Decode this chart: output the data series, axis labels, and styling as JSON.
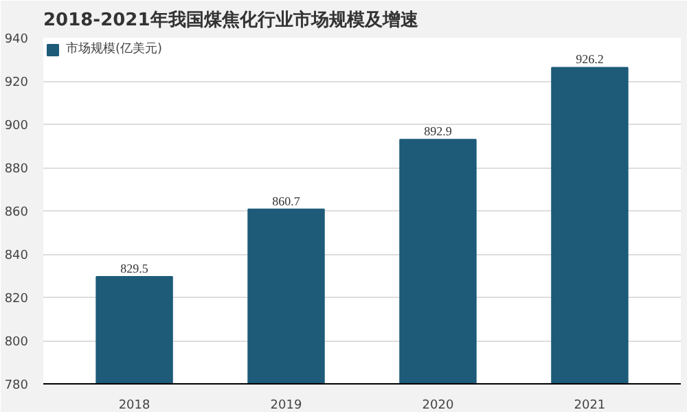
{
  "chart_data": {
    "type": "bar",
    "title": "2018-2021年我国煤焦化行业市场规模及增速",
    "categories": [
      "2018",
      "2019",
      "2020",
      "2021"
    ],
    "series": [
      {
        "name": "市场规模(亿美元)",
        "color": "#1d5b79",
        "values": [
          829.5,
          860.7,
          892.9,
          926.2
        ]
      }
    ],
    "ylim": [
      780,
      940
    ],
    "yticks": [
      780,
      800,
      820,
      840,
      860,
      880,
      900,
      920,
      940
    ],
    "grid": "y",
    "legend": "top left",
    "data_labels": true
  }
}
